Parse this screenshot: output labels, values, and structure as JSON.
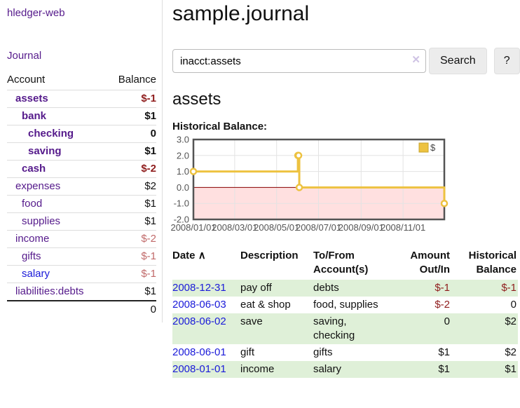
{
  "sidebar": {
    "brand": "hledger-web",
    "nav": {
      "journal": "Journal"
    },
    "accounts": {
      "col_account": "Account",
      "col_balance": "Balance",
      "rows": [
        {
          "name": "assets",
          "depth": 0,
          "bold": true,
          "balance": "$-1",
          "balance_style": "neg-strong"
        },
        {
          "name": "bank",
          "depth": 1,
          "bold": true,
          "balance": "$1",
          "balance_style": "pos"
        },
        {
          "name": "checking",
          "depth": 2,
          "bold": true,
          "balance": "0",
          "balance_style": "pos"
        },
        {
          "name": "saving",
          "depth": 2,
          "bold": true,
          "balance": "$1",
          "balance_style": "pos"
        },
        {
          "name": "cash",
          "depth": 1,
          "bold": true,
          "balance": "$-2",
          "balance_style": "neg-strong"
        },
        {
          "name": "expenses",
          "depth": 0,
          "bold": false,
          "balance": "$2",
          "balance_style": "pos"
        },
        {
          "name": "food",
          "depth": 1,
          "bold": false,
          "balance": "$1",
          "balance_style": "pos"
        },
        {
          "name": "supplies",
          "depth": 1,
          "bold": false,
          "balance": "$1",
          "balance_style": "pos"
        },
        {
          "name": "income",
          "depth": 0,
          "bold": false,
          "balance": "$-2",
          "balance_style": "neg-muted"
        },
        {
          "name": "gifts",
          "depth": 1,
          "bold": false,
          "balance": "$-1",
          "balance_style": "neg-muted"
        },
        {
          "name": "salary",
          "depth": 1,
          "bold": false,
          "balance": "$-1",
          "balance_style": "neg-muted",
          "link_style": "blue"
        },
        {
          "name": "liabilities:debts",
          "depth": 0,
          "bold": false,
          "balance": "$1",
          "balance_style": "pos"
        }
      ],
      "total": "0"
    }
  },
  "header": {
    "title": "sample.journal"
  },
  "search": {
    "value": "inacct:assets",
    "clear_icon": "✕",
    "search_label": "Search",
    "help_label": "?"
  },
  "account_page": {
    "heading": "assets",
    "chart_label": "Historical Balance:"
  },
  "chart_data": {
    "type": "line",
    "title": "Historical Balance:",
    "legend_position": "top-right",
    "legend": [
      {
        "label": "$",
        "color": "#EDC240"
      }
    ],
    "series": [
      {
        "name": "$",
        "color": "#EDC240",
        "step": true,
        "points": [
          [
            "2008-01-01",
            1
          ],
          [
            "2008-06-01",
            2
          ],
          [
            "2008-06-02",
            2
          ],
          [
            "2008-06-03",
            0
          ],
          [
            "2008-12-31",
            -1
          ]
        ]
      }
    ],
    "x_range": [
      "2008-01-01",
      "2008-12-31"
    ],
    "x_ticks": [
      {
        "date": "2008-01-01",
        "label": "2008/01/01"
      },
      {
        "date": "2008-03-01",
        "label": "2008/03/01"
      },
      {
        "date": "2008-05-01",
        "label": "2008/05/01"
      },
      {
        "date": "2008-07-01",
        "label": "2008/07/01"
      },
      {
        "date": "2008-09-01",
        "label": "2008/09/01"
      },
      {
        "date": "2008-11-01",
        "label": "2008/11/01"
      }
    ],
    "y_ticks": [
      {
        "v": 3,
        "label": "3.0"
      },
      {
        "v": 2,
        "label": "2.0"
      },
      {
        "v": 1,
        "label": "1.0"
      },
      {
        "v": 0,
        "label": "0.0"
      },
      {
        "v": -1,
        "label": "-1.0"
      },
      {
        "v": -2,
        "label": "-2.0"
      }
    ],
    "ylim": [
      -2,
      3
    ],
    "grid": true,
    "zero_line_color": "#8B0000",
    "negative_region_fill": "rgba(255,0,0,0.12)",
    "border_color": "#545454",
    "tick_color": "#545454"
  },
  "register": {
    "columns": {
      "date": "Date",
      "description": "Description",
      "account": "To/From Account(s)",
      "amount": "Amount Out/In",
      "balance": "Historical Balance"
    },
    "sort_icon": "∧",
    "rows": [
      {
        "date": "2008-12-31",
        "description": "pay off",
        "accounts": "debts",
        "amount": "$-1",
        "amount_negative": true,
        "balance": "$-1",
        "balance_negative": true,
        "shaded": true
      },
      {
        "date": "2008-06-03",
        "description": "eat & shop",
        "accounts": "food, supplies",
        "amount": "$-2",
        "amount_negative": true,
        "balance": "0",
        "balance_negative": false,
        "shaded": false
      },
      {
        "date": "2008-06-02",
        "description": "save",
        "accounts": "saving, checking",
        "amount": "0",
        "amount_negative": false,
        "balance": "$2",
        "balance_negative": false,
        "shaded": true
      },
      {
        "date": "2008-06-01",
        "description": "gift",
        "accounts": "gifts",
        "amount": "$1",
        "amount_negative": false,
        "balance": "$2",
        "balance_negative": false,
        "shaded": false
      },
      {
        "date": "2008-01-01",
        "description": "income",
        "accounts": "salary",
        "amount": "$1",
        "amount_negative": false,
        "balance": "$1",
        "balance_negative": false,
        "shaded": true
      }
    ]
  },
  "colors": {
    "link_purple": "#551a8b",
    "link_blue": "#1a1ad9",
    "negative_strong": "#8f1d1d",
    "negative_muted": "#c16a6a",
    "shaded_row_green": "#dff0d8",
    "series_gold": "#EDC240"
  }
}
